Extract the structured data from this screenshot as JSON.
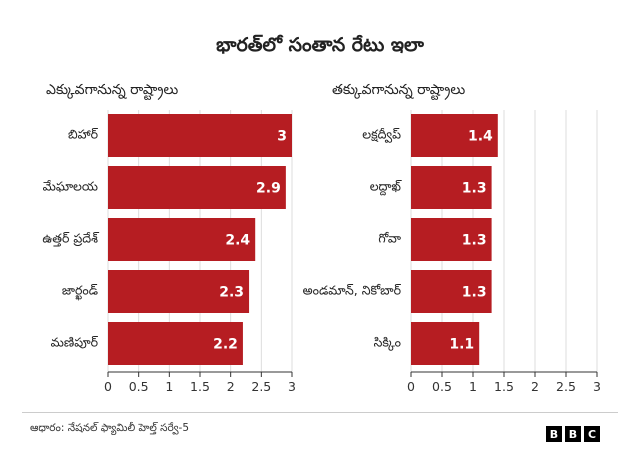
{
  "title": "భారత్‌లో సంతాన రేటు ఇలా",
  "source": "ఆధారం: నేషనల్ ఫ్యామిలీ హెల్త్ సర్వే-5",
  "logo": [
    "B",
    "B",
    "C"
  ],
  "colors": {
    "bar": "#b61d22",
    "bar_label": "#ffffff",
    "axis": "#333333",
    "grid": "#dddddd"
  },
  "chart_data": [
    {
      "type": "bar",
      "orientation": "horizontal",
      "title": "ఎక్కువగానున్న రాష్ట్రాలు",
      "categories": [
        "బిహార్",
        "మేఘాలయ",
        "ఉత్తర్ ప్రదేశ్",
        "జార్ఖండ్",
        "మణిపూర్"
      ],
      "values": [
        3,
        2.9,
        2.4,
        2.3,
        2.2
      ],
      "value_labels": [
        "3",
        "2.9",
        "2.4",
        "2.3",
        "2.2"
      ],
      "xlim": [
        0,
        3
      ],
      "xticks": [
        "0",
        "0.5",
        "1",
        "1.5",
        "2",
        "2.5",
        "3"
      ],
      "grid": true
    },
    {
      "type": "bar",
      "orientation": "horizontal",
      "title": "తక్కువగానున్న రాష్ట్రాలు",
      "categories": [
        "లక్షద్వీప్",
        "లద్దాఖ్",
        "గోవా",
        "అండమాన్, నికోబార్",
        "సిక్కిం"
      ],
      "values": [
        1.4,
        1.3,
        1.3,
        1.3,
        1.1
      ],
      "value_labels": [
        "1.4",
        "1.3",
        "1.3",
        "1.3",
        "1.1"
      ],
      "xlim": [
        0,
        3
      ],
      "xticks": [
        "0",
        "0.5",
        "1",
        "1.5",
        "2",
        "2.5",
        "3"
      ],
      "grid": true
    }
  ]
}
